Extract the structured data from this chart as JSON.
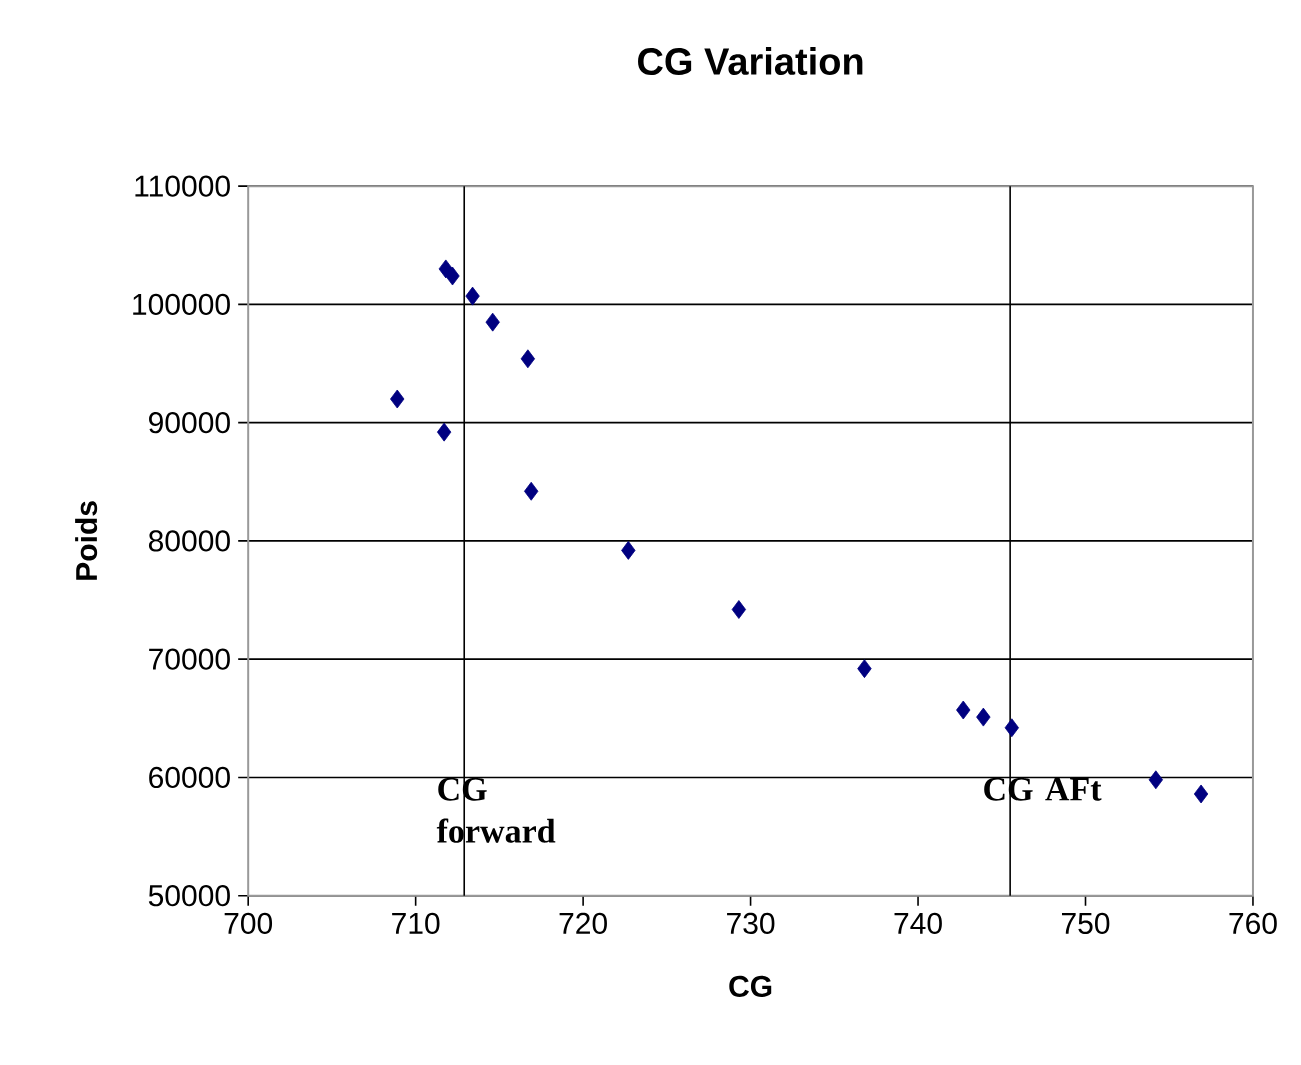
{
  "chart_data": {
    "type": "scatter",
    "title": "CG  Variation",
    "xlabel": "CG",
    "ylabel": "Poids",
    "x": [
      711.8,
      712.2,
      713.4,
      714.6,
      716.7,
      708.9,
      711.7,
      716.9,
      722.7,
      729.3,
      736.8,
      742.7,
      743.9,
      745.6,
      754.2,
      756.9
    ],
    "series": [
      {
        "color": "#000080",
        "values": [
          103000,
          102400,
          100700,
          98500,
          95400,
          92000,
          89200,
          84200,
          79200,
          74200,
          69200,
          65700,
          65100,
          64200,
          59800,
          58600
        ]
      }
    ],
    "xlim": [
      700,
      760
    ],
    "xticks": [
      700,
      710,
      720,
      730,
      740,
      750,
      760
    ],
    "ylim": [
      50000,
      110000
    ],
    "yticks": [
      50000,
      60000,
      70000,
      80000,
      90000,
      100000,
      110000
    ],
    "grid": "y",
    "marker": "diamond",
    "ref_lines": [
      {
        "axis": "x",
        "value": 712.9,
        "label": "CG forward"
      },
      {
        "axis": "x",
        "value": 745.5,
        "label": "CG AFt"
      }
    ]
  }
}
